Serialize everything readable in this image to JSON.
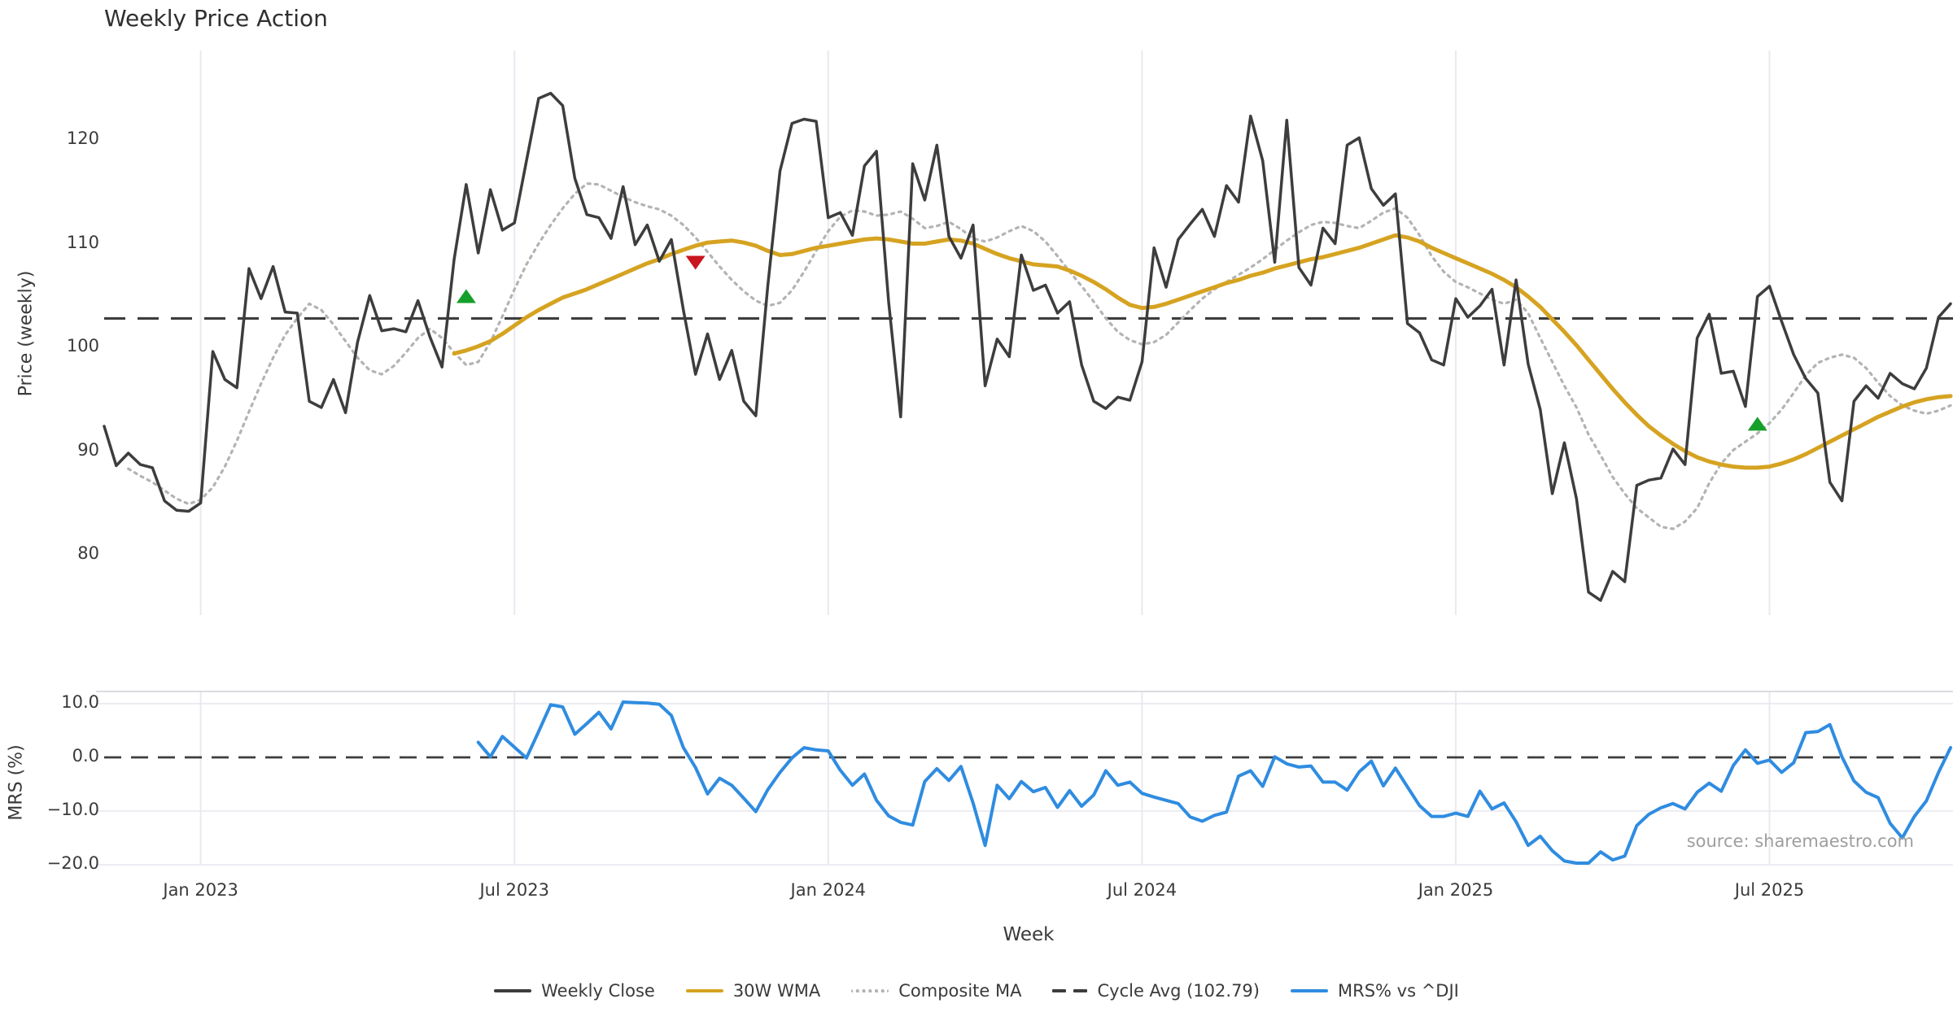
{
  "title": "Weekly Price Action",
  "xlabel": "Week",
  "source": "source: sharemaestro.com",
  "colors": {
    "close": "#3d3d3d",
    "wma30": "#d6a321",
    "composite": "#b3b3b3",
    "cycle": "#3d3d3d",
    "mrs": "#2f8ce0",
    "buy_marker": "#15a02a",
    "sell_marker": "#c9151e",
    "gridline": "#e9e9f1",
    "panel_spine": "#cfcfd6",
    "text": "#3a3a3a",
    "source_text": "#9e9e9e"
  },
  "legend": [
    {
      "label": "Weekly Close",
      "swatch": "solid",
      "color": "#3d3d3d"
    },
    {
      "label": "30W WMA",
      "swatch": "solid",
      "color": "#d6a321"
    },
    {
      "label": "Composite MA",
      "swatch": "dotted",
      "color": "#b3b3b3"
    },
    {
      "label": "Cycle Avg (102.79)",
      "swatch": "dashes",
      "color": "#3d3d3d"
    },
    {
      "label": "MRS% vs ^DJI",
      "swatch": "solid",
      "color": "#2f8ce0"
    }
  ],
  "chart_data": {
    "type": "line",
    "x_unit": "week_index",
    "n_weeks": 154,
    "x_ticks": {
      "labels": [
        "Jan 2023",
        "Jul 2023",
        "Jan 2024",
        "Jul 2024",
        "Jan 2025",
        "Jul 2025"
      ],
      "week_indices": [
        8,
        34,
        60,
        86,
        112,
        138
      ]
    },
    "panels": [
      {
        "name": "price",
        "ylabel": "Price (weekly)",
        "yticks": [
          120,
          110,
          100,
          90,
          80
        ],
        "ytick_labels": [
          "120",
          "110",
          "100",
          "90",
          "80"
        ],
        "ylim": [
          74.2,
          128.6
        ],
        "cycle_avg": 102.79,
        "series": [
          {
            "name": "Weekly Close",
            "color": "#3d3d3d",
            "style": "solid",
            "width": 3.5,
            "start_week": 0,
            "values": [
              92.4,
              88.6,
              89.8,
              88.7,
              88.4,
              85.2,
              84.3,
              84.2,
              85.0,
              99.6,
              96.9,
              96.1,
              107.6,
              104.7,
              107.8,
              103.4,
              103.3,
              94.8,
              94.2,
              96.9,
              93.7,
              100.5,
              105.0,
              101.6,
              101.8,
              101.5,
              104.5,
              101.0,
              98.1,
              108.5,
              115.7,
              109.1,
              115.2,
              111.3,
              112.0,
              118.0,
              124.0,
              124.5,
              123.3,
              116.3,
              112.8,
              112.5,
              110.5,
              115.5,
              109.9,
              111.8,
              108.3,
              110.4,
              103.6,
              97.4,
              101.3,
              96.9,
              99.7,
              94.8,
              93.4,
              106.0,
              117.0,
              121.6,
              122.0,
              121.8,
              112.5,
              113.0,
              110.8,
              117.5,
              118.9,
              104.4,
              93.3,
              117.7,
              114.2,
              119.5,
              110.7,
              108.6,
              111.8,
              96.3,
              100.8,
              99.1,
              108.9,
              105.5,
              106.0,
              103.3,
              104.4,
              98.3,
              94.8,
              94.1,
              95.2,
              94.9,
              98.6,
              109.6,
              105.8,
              110.4,
              111.9,
              113.3,
              110.7,
              115.6,
              114.0,
              122.3,
              118.0,
              108.2,
              121.9,
              107.7,
              106.0,
              111.5,
              110.0,
              119.5,
              120.2,
              115.3,
              113.7,
              114.8,
              102.3,
              101.4,
              98.8,
              98.3,
              104.7,
              102.9,
              104.0,
              105.6,
              98.3,
              106.5,
              98.4,
              94.0,
              85.9,
              90.8,
              85.4,
              76.4,
              75.6,
              78.4,
              77.4,
              86.7,
              87.2,
              87.4,
              90.2,
              88.7,
              100.9,
              103.2,
              97.5,
              97.7,
              94.3,
              104.9,
              105.9,
              102.5,
              99.3,
              97.0,
              95.6,
              87.0,
              85.2,
              94.8,
              96.3,
              95.1,
              97.5,
              96.5,
              96.0,
              98.0,
              102.9,
              104.2
            ]
          },
          {
            "name": "30W WMA",
            "color": "#d6a321",
            "style": "solid",
            "width": 5,
            "start_week": 29,
            "values": [
              99.4,
              99.7,
              100.1,
              100.6,
              101.3,
              102.1,
              102.9,
              103.6,
              104.2,
              104.8,
              105.2,
              105.6,
              106.1,
              106.6,
              107.1,
              107.6,
              108.1,
              108.5,
              109.0,
              109.4,
              109.8,
              110.1,
              110.2,
              110.3,
              110.1,
              109.8,
              109.3,
              108.9,
              109.0,
              109.3,
              109.6,
              109.8,
              110.0,
              110.2,
              110.4,
              110.5,
              110.4,
              110.2,
              110.0,
              110.0,
              110.2,
              110.4,
              110.3,
              110.0,
              109.5,
              109.0,
              108.6,
              108.3,
              108.0,
              107.9,
              107.8,
              107.4,
              106.9,
              106.3,
              105.6,
              104.8,
              104.1,
              103.8,
              103.9,
              104.2,
              104.6,
              105.0,
              105.4,
              105.8,
              106.2,
              106.5,
              106.9,
              107.2,
              107.6,
              107.9,
              108.2,
              108.5,
              108.7,
              109.0,
              109.3,
              109.6,
              110.0,
              110.4,
              110.8,
              110.6,
              110.2,
              109.6,
              109.1,
              108.6,
              108.1,
              107.6,
              107.1,
              106.5,
              105.8,
              104.9,
              103.9,
              102.7,
              101.5,
              100.2,
              98.8,
              97.4,
              96.0,
              94.7,
              93.5,
              92.4,
              91.5,
              90.7,
              90.0,
              89.4,
              89.0,
              88.7,
              88.5,
              88.4,
              88.4,
              88.5,
              88.8,
              89.2,
              89.7,
              90.3,
              90.9,
              91.5,
              92.1,
              92.7,
              93.3,
              93.8,
              94.3,
              94.7,
              95.0,
              95.2,
              95.3
            ]
          },
          {
            "name": "Composite MA",
            "color": "#b3b3b3",
            "style": "dotted",
            "width": 3.2,
            "start_week": 2,
            "values": [
              88.3,
              87.6,
              87.0,
              86.2,
              85.4,
              84.9,
              85.3,
              86.5,
              88.5,
              91.0,
              93.8,
              96.5,
              99.0,
              101.2,
              102.8,
              104.2,
              103.6,
              102.2,
              100.6,
              99.0,
              97.8,
              97.4,
              98.2,
              99.5,
              100.9,
              101.8,
              100.9,
              99.5,
              98.3,
              98.6,
              100.5,
              103.0,
              105.6,
              108.0,
              110.0,
              111.8,
              113.4,
              114.8,
              115.8,
              115.7,
              115.1,
              114.5,
              114.0,
              113.6,
              113.3,
              112.7,
              111.8,
              110.6,
              109.2,
              107.8,
              106.5,
              105.4,
              104.5,
              104.0,
              104.3,
              105.5,
              107.3,
              109.3,
              111.2,
              112.6,
              113.2,
              113.1,
              112.7,
              112.8,
              113.1,
              112.4,
              111.5,
              111.7,
              112.1,
              111.4,
              110.5,
              110.2,
              110.6,
              111.2,
              111.7,
              111.2,
              110.2,
              108.8,
              107.3,
              105.9,
              104.4,
              102.8,
              101.5,
              100.7,
              100.3,
              100.5,
              101.2,
              102.4,
              103.6,
              104.7,
              105.6,
              106.3,
              107.0,
              107.7,
              108.5,
              109.4,
              110.3,
              111.1,
              111.8,
              112.1,
              112.0,
              111.7,
              111.5,
              112.2,
              113.0,
              113.4,
              112.5,
              110.8,
              108.8,
              107.3,
              106.3,
              105.8,
              105.2,
              104.6,
              104.2,
              104.6,
              103.3,
              100.9,
              98.6,
              96.3,
              94.2,
              91.6,
              89.6,
              87.5,
              85.9,
              84.5,
              83.6,
              82.7,
              82.5,
              83.2,
              84.5,
              86.9,
              88.8,
              90.1,
              90.9,
              91.7,
              92.7,
              94.0,
              95.6,
              97.3,
              98.5,
              99.0,
              99.3,
              99.0,
              98.0,
              96.6,
              95.3,
              94.4,
              93.9,
              93.6,
              93.9,
              94.4
            ]
          }
        ],
        "markers": [
          {
            "week": 30,
            "price": 104.9,
            "shape": "triangle-up",
            "color": "#15a02a"
          },
          {
            "week": 49,
            "price": 108.2,
            "shape": "triangle-down",
            "color": "#c9151e"
          },
          {
            "week": 137,
            "price": 92.6,
            "shape": "triangle-up",
            "color": "#15a02a"
          }
        ]
      },
      {
        "name": "mrs",
        "ylabel": "MRS (%)",
        "yticks": [
          10.0,
          0.0,
          -10.0,
          -20.0
        ],
        "ytick_labels": [
          "10.0",
          "0.0",
          "−10.0",
          "−20.0"
        ],
        "ylim": [
          -20.4,
          12.3
        ],
        "zero_line": 0,
        "series": [
          {
            "name": "MRS% vs ^DJI",
            "color": "#2f8ce0",
            "style": "solid",
            "width": 4,
            "start_week": 31,
            "values": [
              2.8,
              0.1,
              3.9,
              1.9,
              -0.1,
              4.8,
              9.8,
              9.4,
              4.3,
              6.3,
              8.4,
              5.3,
              10.3,
              10.2,
              10.1,
              9.9,
              7.8,
              1.8,
              -1.9,
              -6.8,
              -3.9,
              -5.2,
              -7.6,
              -10.1,
              -6.0,
              -2.8,
              -0.1,
              1.8,
              1.4,
              1.2,
              -2.4,
              -5.2,
              -3.1,
              -8.0,
              -10.9,
              -12.1,
              -12.6,
              -4.5,
              -2.1,
              -4.3,
              -1.7,
              -8.5,
              -16.4,
              -5.2,
              -7.7,
              -4.5,
              -6.4,
              -5.6,
              -9.3,
              -6.2,
              -9.1,
              -7.0,
              -2.5,
              -5.2,
              -4.6,
              -6.7,
              -7.4,
              -8.0,
              -8.6,
              -11.1,
              -11.9,
              -10.8,
              -10.2,
              -3.5,
              -2.5,
              -5.4,
              0.1,
              -1.2,
              -1.8,
              -1.6,
              -4.6,
              -4.6,
              -6.1,
              -2.7,
              -0.7,
              -5.3,
              -2.0,
              -5.5,
              -9.0,
              -11.0,
              -11.0,
              -10.4,
              -11.0,
              -6.3,
              -9.6,
              -8.5,
              -12.0,
              -16.4,
              -14.7,
              -17.4,
              -19.3,
              -19.7,
              -19.7,
              -17.6,
              -19.1,
              -18.4,
              -12.7,
              -10.6,
              -9.4,
              -8.6,
              -9.6,
              -6.5,
              -4.8,
              -6.3,
              -1.5,
              1.4,
              -1.1,
              -0.5,
              -2.8,
              -1.0,
              4.6,
              4.8,
              6.1,
              0.1,
              -4.4,
              -6.5,
              -7.5,
              -12.3,
              -15.0,
              -11.0,
              -8.1,
              -2.8,
              1.8
            ]
          }
        ]
      }
    ]
  }
}
